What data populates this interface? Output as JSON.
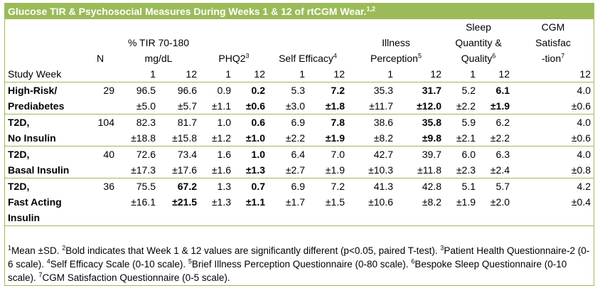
{
  "title": "Glucose TIR & Psychosocial Measures During Weeks 1 & 12 of rtCGM Wear.",
  "title_sup": "1,2",
  "headers": {
    "n": "N",
    "tir_l1": "% TIR 70-180",
    "tir_l2": "mg/dL",
    "phq": "PHQ2",
    "phq_sup": "3",
    "se": "Self Efficacy",
    "se_sup": "4",
    "ip_l1": "Illness",
    "ip_l2": "Perception",
    "ip_sup": "5",
    "sq_l1": "Sleep",
    "sq_l2": "Quantity &",
    "sq_l3": "Quality",
    "sq_sup": "6",
    "cgm_l1": "CGM",
    "cgm_l2": "Satisfac",
    "cgm_l3": "-tion",
    "cgm_sup": "7",
    "study_week": "Study Week",
    "w1": "1",
    "w12": "12"
  },
  "groups": [
    {
      "name1": "High-Risk/",
      "name2": "Prediabetes",
      "name3": "",
      "n": "29",
      "tir1": "96.5",
      "tir1_sd": "±5.0",
      "tir12": "96.6",
      "tir12_sd": "±5.7",
      "phq1": "0.9",
      "phq1_sd": "±1.1",
      "phq12": "0.2",
      "phq12_sd": "±0.6",
      "se1": "5.3",
      "se1_sd": "±3.0",
      "se12": "7.2",
      "se12_sd": "±1.8",
      "ip1": "35.3",
      "ip1_sd": "±11.7",
      "ip12": "31.7",
      "ip12_sd": "±12.0",
      "sq1": "5.2",
      "sq1_sd": "±2.2",
      "sq12": "6.1",
      "sq12_sd": "±1.9",
      "cgm": "4.0",
      "cgm_sd": "±0.6"
    },
    {
      "name1": "T2D,",
      "name2": "No Insulin",
      "name3": "",
      "n": "104",
      "tir1": "82.3",
      "tir1_sd": "±18.8",
      "tir12": "81.7",
      "tir12_sd": "±15.8",
      "phq1": "1.0",
      "phq1_sd": "±1.2",
      "phq12": "0.6",
      "phq12_sd": "±1.0",
      "se1": "6.9",
      "se1_sd": "±2.2",
      "se12": "7.8",
      "se12_sd": "±1.9",
      "ip1": "38.6",
      "ip1_sd": "±8.2",
      "ip12": "35.8",
      "ip12_sd": "±9.8",
      "sq1": "5.9",
      "sq1_sd": "±2.1",
      "sq12": "6.2",
      "sq12_sd": "±2.2",
      "cgm": "4.0",
      "cgm_sd": "±0.6"
    },
    {
      "name1": "T2D,",
      "name2": "Basal Insulin",
      "name3": "",
      "n": "40",
      "tir1": "72.6",
      "tir1_sd": "±17.3",
      "tir12": "73.4",
      "tir12_sd": "±17.6",
      "phq1": "1.6",
      "phq1_sd": "±1.6",
      "phq12": "1.0",
      "phq12_sd": "±1.3",
      "se1": "6.4",
      "se1_sd": "±2.7",
      "se12": "7.0",
      "se12_sd": "±1.9",
      "ip1": "42.7",
      "ip1_sd": "±10.3",
      "ip12": "39.7",
      "ip12_sd": "±11.8",
      "sq1": "6.0",
      "sq1_sd": "±2.3",
      "sq12": "6.3",
      "sq12_sd": "±2.4",
      "cgm": "4.0",
      "cgm_sd": "±0.8"
    },
    {
      "name1": "T2D,",
      "name2": "Fast Acting",
      "name3": "Insulin",
      "n": "36",
      "tir1": "75.5",
      "tir1_sd": "±16.1",
      "tir12": "67.2",
      "tir12_sd": "±21.5",
      "phq1": "1.3",
      "phq1_sd": "±1.3",
      "phq12": "0.7",
      "phq12_sd": "±1.1",
      "se1": "6.9",
      "se1_sd": "±1.7",
      "se12": "7.2",
      "se12_sd": "±1.5",
      "ip1": "41.3",
      "ip1_sd": "±10.6",
      "ip12": "42.8",
      "ip12_sd": "±8.2",
      "sq1": "5.1",
      "sq1_sd": "±1.9",
      "sq12": "5.7",
      "sq12_sd": "±2.0",
      "cgm": "4.2",
      "cgm_sd": "±0.4"
    }
  ],
  "footnote": {
    "s1": "1",
    "t1": "Mean ±SD. ",
    "s2": "2",
    "t2": "Bold indicates that Week 1 & 12 values are significantly different (p<0.05, paired T-test). ",
    "s3": "3",
    "t3": "Patient Health Questionnaire-2 (0-6 scale). ",
    "s4": "4",
    "t4": "Self Efficacy Scale (0-10 scale). ",
    "s5": "5",
    "t5": "Brief Illness Perception Questionnaire (0-80 scale). ",
    "s6": "6",
    "t6": "Bespoke Sleep Questionnaire (0-10 scale). ",
    "s7": "7",
    "t7": "CGM Satisfaction Questionnaire (0-5 scale)."
  }
}
